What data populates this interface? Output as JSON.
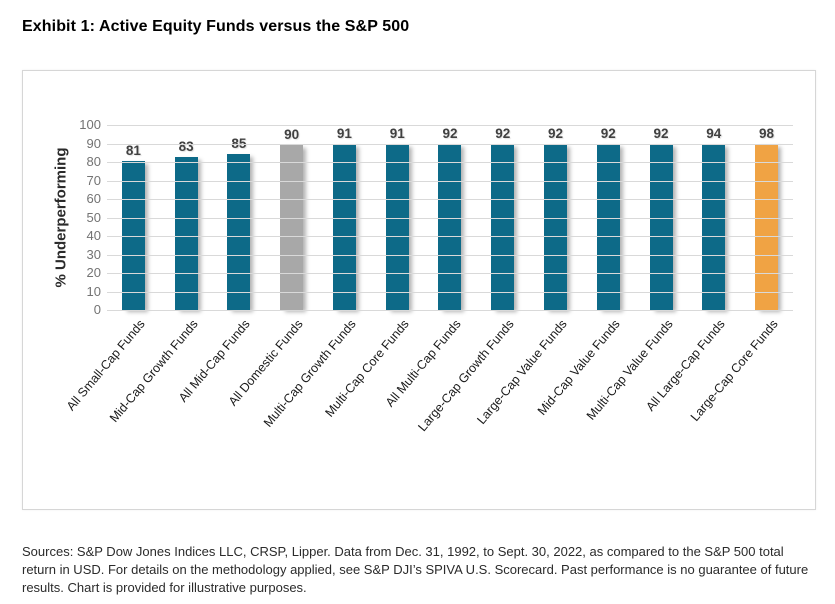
{
  "page": {
    "title": "Exhibit 1: Active Equity Funds versus the S&P 500"
  },
  "chart_data": {
    "type": "bar",
    "title": "Exhibit 1: Active Equity Funds versus the S&P 500",
    "xlabel": "",
    "ylabel": "% Underperforming",
    "ylim": [
      0,
      100
    ],
    "ytick_interval": 10,
    "grid": true,
    "value_labels_shown": true,
    "categories": [
      "All Small-Cap Funds",
      "Mid-Cap Growth Funds",
      "All Mid-Cap Funds",
      "All Domestic Funds",
      "Multi-Cap Growth Funds",
      "Multi-Cap Core Funds",
      "All Multi-Cap Funds",
      "Large-Cap Growth Funds",
      "Large-Cap Value Funds",
      "Mid-Cap Value Funds",
      "Multi-Cap Value Funds",
      "All Large-Cap Funds",
      "Large-Cap Core Funds"
    ],
    "values": [
      81,
      83,
      85,
      90,
      91,
      91,
      92,
      92,
      92,
      92,
      92,
      94,
      98
    ],
    "bar_colors": [
      "#0d6a88",
      "#0d6a88",
      "#0d6a88",
      "#a8a8a8",
      "#0d6a88",
      "#0d6a88",
      "#0d6a88",
      "#0d6a88",
      "#0d6a88",
      "#0d6a88",
      "#0d6a88",
      "#0d6a88",
      "#f0a344"
    ]
  },
  "colors": {
    "bar_default": "#0d6a88",
    "bar_highlight_gray": "#a8a8a8",
    "bar_highlight_orange": "#f0a344",
    "gridline": "#d9d9d9",
    "tick_label": "#737373",
    "value_label": "#404040",
    "panel_border": "#d6d6d6"
  },
  "footer": {
    "text": "Sources: S&P Dow Jones Indices LLC, CRSP, Lipper. Data from Dec. 31, 1992, to Sept. 30, 2022, as compared to the S&P 500 total return in USD. For details on the methodology applied, see S&P DJI’s SPIVA U.S. Scorecard. Past performance is no guarantee of future results. Chart is provided for illustrative purposes."
  }
}
